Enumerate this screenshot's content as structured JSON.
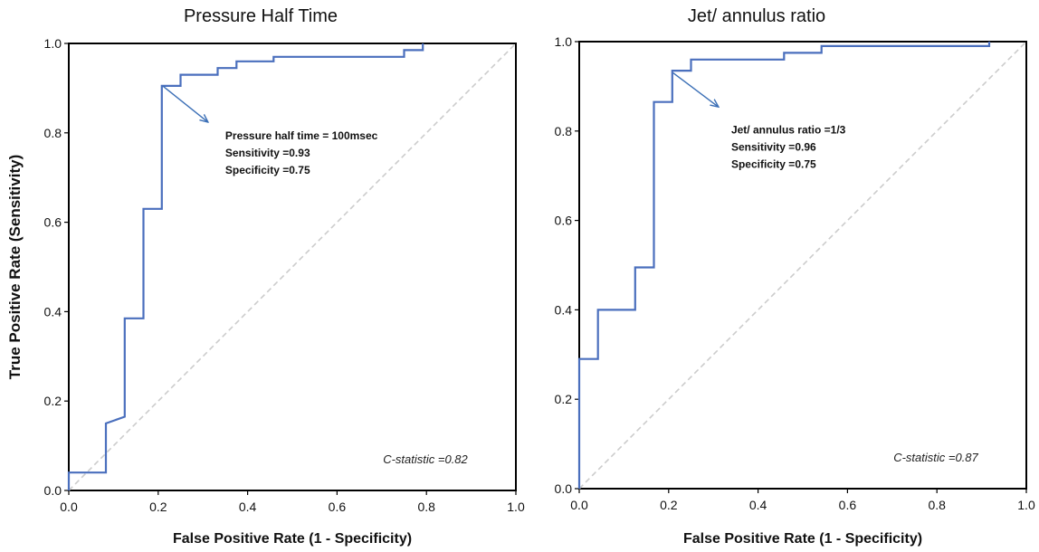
{
  "figure": {
    "ylabel": "True Positive Rate (Sensitivity)"
  },
  "chart_data": [
    {
      "type": "line",
      "title": "Pressure Half Time",
      "xlabel": "False Positive Rate (1 - Specificity)",
      "ylabel": "True Positive Rate (Sensitivity)",
      "xlim": [
        0,
        1
      ],
      "ylim": [
        0,
        1
      ],
      "xticks": [
        "0.0",
        "0.2",
        "0.4",
        "0.6",
        "0.8",
        "1.0"
      ],
      "yticks": [
        "0.0",
        "0.2",
        "0.4",
        "0.6",
        "0.8",
        "1.0"
      ],
      "grid": false,
      "series": [
        {
          "color": "#4a6fbd",
          "x": [
            0,
            0,
            0.083,
            0.083,
            0.125,
            0.125,
            0.167,
            0.167,
            0.208,
            0.208,
            0.25,
            0.25,
            0.333,
            0.333,
            0.375,
            0.375,
            0.458,
            0.458,
            0.75,
            0.75,
            0.792,
            0.792
          ],
          "y": [
            0,
            0.04,
            0.04,
            0.15,
            0.165,
            0.385,
            0.385,
            0.63,
            0.63,
            0.905,
            0.905,
            0.93,
            0.93,
            0.945,
            0.945,
            0.96,
            0.96,
            0.97,
            0.97,
            0.985,
            0.985,
            1.0
          ]
        }
      ],
      "reference_line": {
        "style": "dashed",
        "color": "#cccccc",
        "from": [
          0,
          0
        ],
        "to": [
          1,
          1
        ]
      },
      "annotation_lines": [
        "Pressure half time = 100msec",
        "Sensitivity =0.93",
        "Specificity =0.75"
      ],
      "arrow": {
        "from": [
          0.21,
          0.905
        ],
        "to": [
          0.31,
          0.825
        ]
      },
      "annotation_anchor": [
        0.35,
        0.785
      ],
      "c_statistic": "C-statistic =0.82"
    },
    {
      "type": "line",
      "title": "Jet/ annulus ratio",
      "xlabel": "False Positive Rate (1 - Specificity)",
      "xlim": [
        0,
        1
      ],
      "ylim": [
        0,
        1
      ],
      "xticks": [
        "0.0",
        "0.2",
        "0.4",
        "0.6",
        "0.8",
        "1.0"
      ],
      "yticks": [
        "0.0",
        "0.2",
        "0.4",
        "0.6",
        "0.8",
        "1.0"
      ],
      "grid": false,
      "series": [
        {
          "color": "#4a6fbd",
          "x": [
            0,
            0,
            0.042,
            0.042,
            0.125,
            0.125,
            0.167,
            0.167,
            0.208,
            0.208,
            0.25,
            0.25,
            0.458,
            0.458,
            0.542,
            0.542,
            0.917,
            0.917
          ],
          "y": [
            0,
            0.29,
            0.29,
            0.4,
            0.4,
            0.495,
            0.495,
            0.865,
            0.865,
            0.935,
            0.935,
            0.96,
            0.96,
            0.975,
            0.975,
            0.99,
            0.99,
            1.0
          ]
        }
      ],
      "reference_line": {
        "style": "dashed",
        "color": "#cccccc",
        "from": [
          0,
          0
        ],
        "to": [
          1,
          1
        ]
      },
      "annotation_lines": [
        "Jet/ annulus ratio =1/3",
        "Sensitivity =0.96",
        "Specificity =0.75"
      ],
      "arrow": {
        "from": [
          0.21,
          0.93
        ],
        "to": [
          0.31,
          0.855
        ]
      },
      "annotation_anchor": [
        0.34,
        0.795
      ],
      "c_statistic": "C-statistic =0.87"
    }
  ]
}
